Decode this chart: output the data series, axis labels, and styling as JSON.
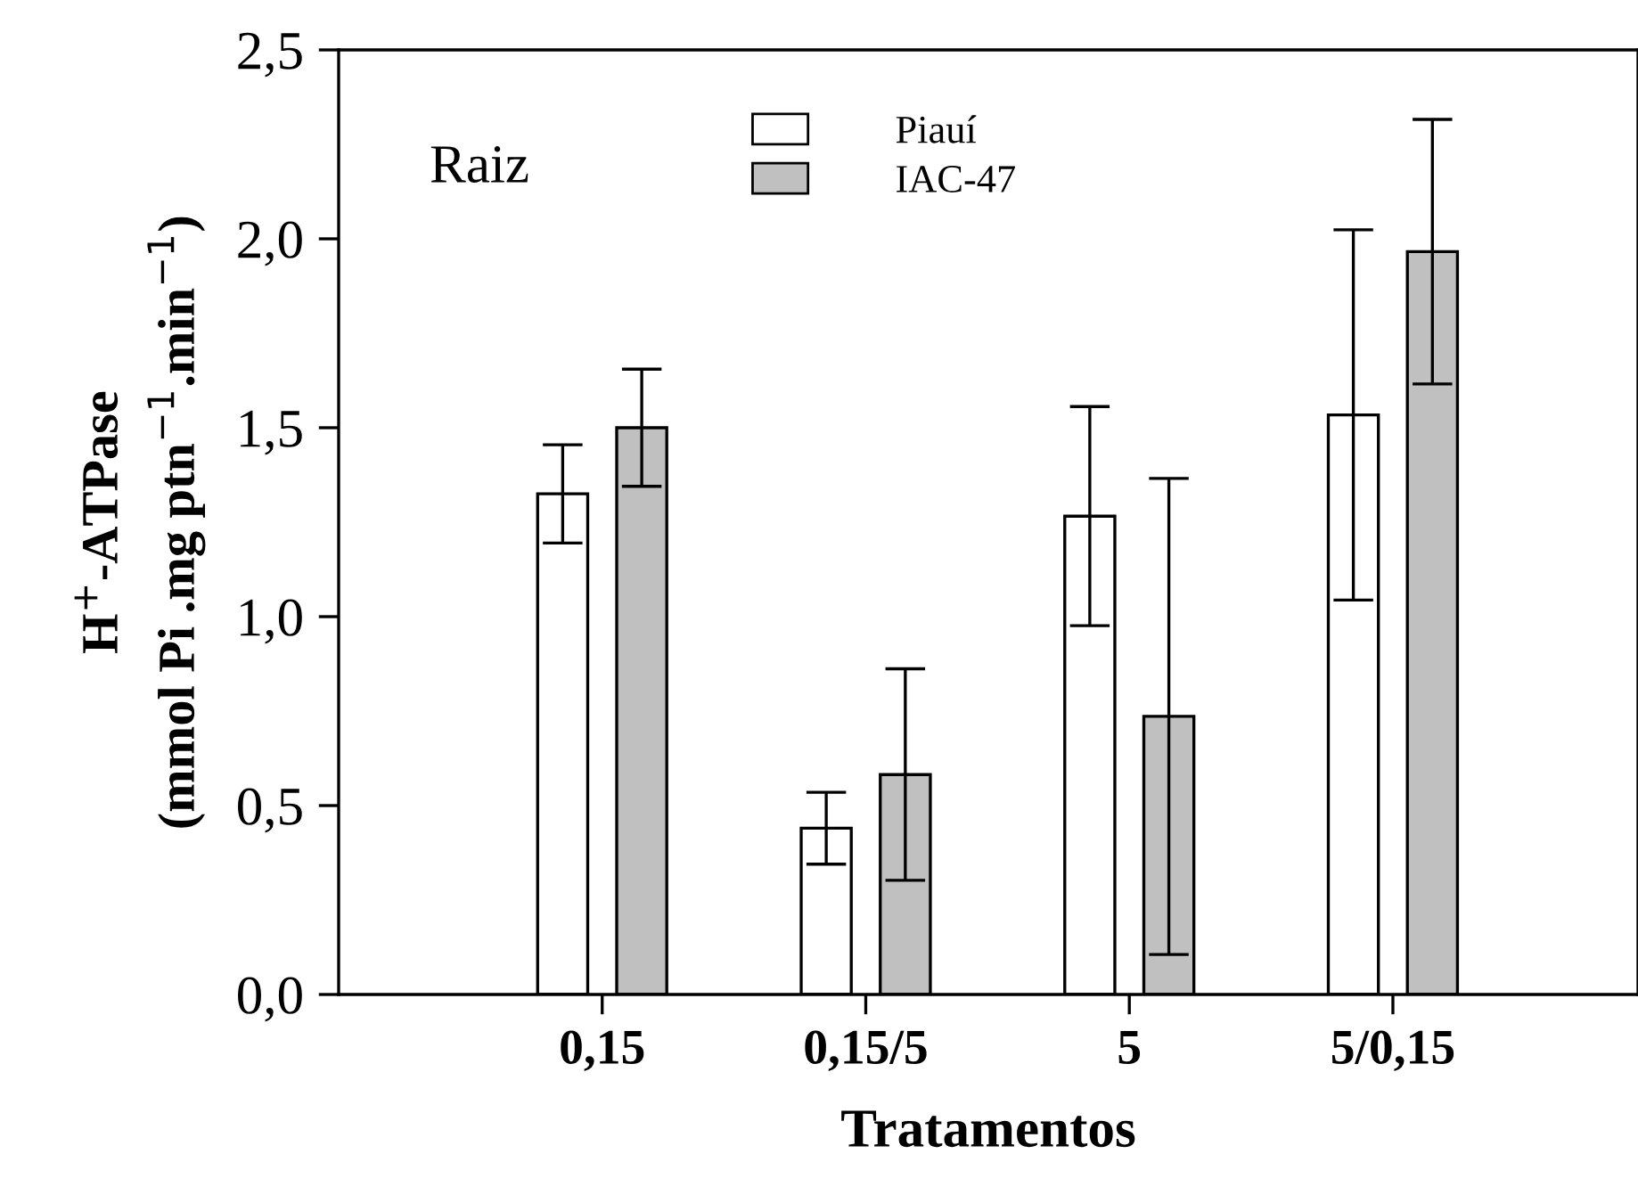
{
  "chart_data": {
    "type": "bar",
    "xlabel": "Tratamentos",
    "ylabel": "H$^{+}$-ATPase\n(mmol Pi .mg ptn$^{−1}$.min$^{−1}$)",
    "categories": [
      "0,15",
      "0,15/5",
      "5",
      "5/0,15"
    ],
    "series": [
      {
        "name": "Piauí",
        "color": "#ffffff",
        "values": [
          1.325,
          0.44,
          1.266,
          1.534
        ],
        "errors": [
          0.13,
          0.095,
          0.29,
          0.49
        ]
      },
      {
        "name": "IAC-47",
        "color": "#c0c0c0",
        "values": [
          1.5,
          0.582,
          0.736,
          1.966
        ],
        "errors": [
          0.155,
          0.28,
          0.63,
          0.35
        ]
      }
    ],
    "ylim": [
      0,
      2.5
    ],
    "yticks": [
      {
        "value": 0,
        "label": "0,0"
      },
      {
        "value": 0.5,
        "label": "0,5"
      },
      {
        "value": 1,
        "label": "1,0"
      },
      {
        "value": 1.5,
        "label": "1,5"
      },
      {
        "value": 2,
        "label": "2,0"
      },
      {
        "value": 2.5,
        "label": "2,5"
      }
    ],
    "annotations": [
      "Raiz"
    ],
    "legend": "top",
    "grid": false
  }
}
